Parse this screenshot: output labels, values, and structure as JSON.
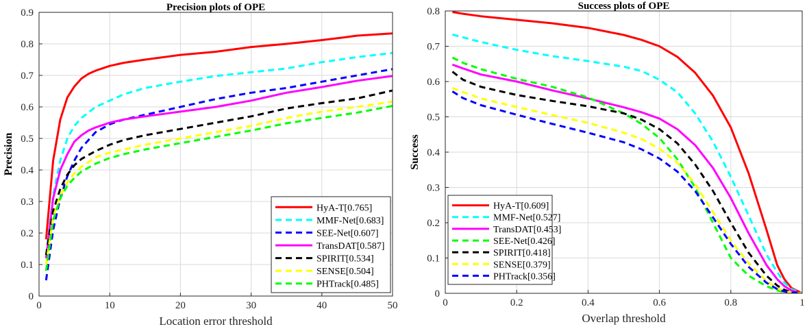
{
  "chart_data": [
    {
      "type": "line",
      "title": "Precision plots of OPE",
      "xlabel": "Location error threshold",
      "ylabel": "Precision",
      "xlim": [
        0,
        50
      ],
      "ylim": [
        0,
        0.9
      ],
      "xticks": [
        "0",
        "10",
        "20",
        "30",
        "40",
        "50"
      ],
      "yticks": [
        "0",
        "0.1",
        "0.2",
        "0.3",
        "0.4",
        "0.5",
        "0.6",
        "0.7",
        "0.8",
        "0.9"
      ],
      "grid": true,
      "legend_position": "bottom-right",
      "series": [
        {
          "name": "HyA-T[0.765]",
          "color": "#ff0000",
          "dash": "solid",
          "x": [
            1,
            2,
            3,
            4,
            5,
            6,
            7,
            8,
            10,
            12,
            15,
            20,
            25,
            30,
            35,
            40,
            43,
            45,
            50
          ],
          "y": [
            0.18,
            0.43,
            0.56,
            0.63,
            0.665,
            0.69,
            0.705,
            0.715,
            0.73,
            0.74,
            0.75,
            0.765,
            0.775,
            0.79,
            0.8,
            0.812,
            0.82,
            0.826,
            0.833
          ]
        },
        {
          "name": "MMF-Net[0.683]",
          "color": "#00ffff",
          "dash": "dashed",
          "x": [
            1,
            2,
            3,
            4,
            5,
            6,
            8,
            10,
            12,
            15,
            20,
            25,
            30,
            35,
            40,
            45,
            50
          ],
          "y": [
            0.13,
            0.32,
            0.43,
            0.5,
            0.54,
            0.565,
            0.6,
            0.62,
            0.64,
            0.66,
            0.68,
            0.698,
            0.71,
            0.722,
            0.742,
            0.758,
            0.771
          ]
        },
        {
          "name": "SEE-Net[0.607]",
          "color": "#0000ff",
          "dash": "dashed",
          "x": [
            1,
            2,
            3,
            4,
            5,
            6,
            8,
            10,
            12,
            15,
            20,
            25,
            30,
            35,
            40,
            45,
            50
          ],
          "y": [
            0.05,
            0.21,
            0.31,
            0.38,
            0.43,
            0.47,
            0.52,
            0.545,
            0.56,
            0.575,
            0.6,
            0.625,
            0.645,
            0.66,
            0.68,
            0.7,
            0.72
          ]
        },
        {
          "name": "TransDAT[0.587]",
          "color": "#ff00ff",
          "dash": "solid",
          "x": [
            1,
            2,
            3,
            4,
            5,
            6,
            7,
            8,
            10,
            12,
            15,
            20,
            25,
            30,
            35,
            40,
            45,
            50
          ],
          "y": [
            0.12,
            0.31,
            0.4,
            0.45,
            0.49,
            0.51,
            0.525,
            0.535,
            0.55,
            0.56,
            0.57,
            0.585,
            0.6,
            0.62,
            0.645,
            0.663,
            0.683,
            0.698
          ]
        },
        {
          "name": "SPIRIT[0.534]",
          "color": "#000000",
          "dash": "dashed",
          "x": [
            1,
            2,
            3,
            4,
            5,
            6,
            8,
            10,
            12,
            15,
            20,
            25,
            30,
            35,
            40,
            45,
            50
          ],
          "y": [
            0.13,
            0.27,
            0.34,
            0.385,
            0.415,
            0.435,
            0.46,
            0.48,
            0.495,
            0.51,
            0.53,
            0.55,
            0.57,
            0.595,
            0.612,
            0.627,
            0.652
          ]
        },
        {
          "name": "SENSE[0.504]",
          "color": "#ffff00",
          "dash": "dashed",
          "x": [
            1,
            2,
            3,
            4,
            5,
            6,
            8,
            10,
            12,
            15,
            20,
            25,
            30,
            35,
            40,
            45,
            50
          ],
          "y": [
            0.1,
            0.25,
            0.32,
            0.36,
            0.39,
            0.41,
            0.44,
            0.455,
            0.465,
            0.48,
            0.5,
            0.52,
            0.54,
            0.565,
            0.585,
            0.6,
            0.617
          ]
        },
        {
          "name": "PHTrack[0.485]",
          "color": "#00ff00",
          "dash": "dashed",
          "x": [
            1,
            2,
            3,
            4,
            5,
            6,
            8,
            10,
            12,
            15,
            20,
            25,
            30,
            35,
            40,
            45,
            50
          ],
          "y": [
            0.08,
            0.24,
            0.31,
            0.35,
            0.375,
            0.395,
            0.42,
            0.438,
            0.45,
            0.465,
            0.485,
            0.505,
            0.525,
            0.548,
            0.565,
            0.582,
            0.603
          ]
        }
      ]
    },
    {
      "type": "line",
      "title": "Success plots of OPE",
      "xlabel": "Overlap threshold",
      "ylabel": "Success",
      "xlim": [
        0,
        1
      ],
      "ylim": [
        0,
        0.8
      ],
      "xticks": [
        "0",
        "0.2",
        "0.4",
        "0.6",
        "0.8",
        "1"
      ],
      "yticks": [
        "0",
        "0.1",
        "0.2",
        "0.3",
        "0.4",
        "0.5",
        "0.6",
        "0.7",
        "0.8"
      ],
      "grid": true,
      "legend_position": "bottom-left",
      "series": [
        {
          "name": "HyA-T[0.609]",
          "color": "#ff0000",
          "dash": "solid",
          "x": [
            0.02,
            0.05,
            0.1,
            0.2,
            0.3,
            0.4,
            0.5,
            0.55,
            0.6,
            0.65,
            0.7,
            0.75,
            0.8,
            0.85,
            0.9,
            0.93,
            0.95,
            0.97,
            0.99,
            1.0
          ],
          "y": [
            0.797,
            0.792,
            0.785,
            0.775,
            0.765,
            0.752,
            0.732,
            0.718,
            0.7,
            0.67,
            0.625,
            0.56,
            0.47,
            0.34,
            0.18,
            0.08,
            0.04,
            0.015,
            0.005,
            0.0
          ]
        },
        {
          "name": "MMF-Net[0.527]",
          "color": "#00ffff",
          "dash": "dashed",
          "x": [
            0.02,
            0.05,
            0.1,
            0.2,
            0.3,
            0.4,
            0.5,
            0.55,
            0.6,
            0.65,
            0.7,
            0.75,
            0.8,
            0.85,
            0.9,
            0.93,
            0.95,
            0.97,
            0.99,
            1.0
          ],
          "y": [
            0.733,
            0.725,
            0.712,
            0.69,
            0.672,
            0.658,
            0.642,
            0.63,
            0.605,
            0.57,
            0.51,
            0.43,
            0.33,
            0.22,
            0.11,
            0.06,
            0.03,
            0.012,
            0.004,
            0.0
          ]
        },
        {
          "name": "TransDAT[0.453]",
          "color": "#ff00ff",
          "dash": "solid",
          "x": [
            0.02,
            0.05,
            0.1,
            0.2,
            0.3,
            0.4,
            0.5,
            0.55,
            0.6,
            0.65,
            0.7,
            0.75,
            0.8,
            0.85,
            0.9,
            0.93,
            0.95,
            0.97,
            0.99,
            1.0
          ],
          "y": [
            0.648,
            0.637,
            0.62,
            0.6,
            0.575,
            0.552,
            0.527,
            0.513,
            0.495,
            0.465,
            0.42,
            0.355,
            0.27,
            0.17,
            0.08,
            0.04,
            0.02,
            0.008,
            0.002,
            0.0
          ]
        },
        {
          "name": "SEE-Net[0.426]",
          "color": "#00ff00",
          "dash": "dashed",
          "x": [
            0.02,
            0.05,
            0.1,
            0.2,
            0.3,
            0.4,
            0.5,
            0.55,
            0.6,
            0.65,
            0.7,
            0.75,
            0.8,
            0.85,
            0.9,
            0.93,
            0.95,
            0.97,
            0.99,
            1.0
          ],
          "y": [
            0.668,
            0.653,
            0.635,
            0.608,
            0.585,
            0.555,
            0.51,
            0.48,
            0.44,
            0.38,
            0.3,
            0.2,
            0.1,
            0.05,
            0.02,
            0.008,
            0.004,
            0.001,
            0.0,
            0.0
          ]
        },
        {
          "name": "SPIRIT[0.418]",
          "color": "#000000",
          "dash": "dashed",
          "x": [
            0.02,
            0.05,
            0.1,
            0.2,
            0.3,
            0.4,
            0.5,
            0.55,
            0.6,
            0.65,
            0.7,
            0.75,
            0.8,
            0.85,
            0.9,
            0.93,
            0.95,
            0.97,
            0.99,
            1.0
          ],
          "y": [
            0.628,
            0.605,
            0.585,
            0.562,
            0.545,
            0.53,
            0.51,
            0.492,
            0.465,
            0.425,
            0.365,
            0.29,
            0.2,
            0.115,
            0.05,
            0.022,
            0.01,
            0.003,
            0.001,
            0.0
          ]
        },
        {
          "name": "SENSE[0.379]",
          "color": "#ffff00",
          "dash": "dashed",
          "x": [
            0.02,
            0.05,
            0.1,
            0.2,
            0.3,
            0.4,
            0.5,
            0.55,
            0.6,
            0.65,
            0.7,
            0.75,
            0.8,
            0.85,
            0.9,
            0.93,
            0.95,
            0.97,
            0.99,
            1.0
          ],
          "y": [
            0.582,
            0.57,
            0.552,
            0.528,
            0.505,
            0.483,
            0.455,
            0.437,
            0.41,
            0.37,
            0.31,
            0.23,
            0.15,
            0.085,
            0.035,
            0.014,
            0.006,
            0.002,
            0.0,
            0.0
          ]
        },
        {
          "name": "PHTrack[0.356]",
          "color": "#0000ff",
          "dash": "dashed",
          "x": [
            0.02,
            0.05,
            0.1,
            0.2,
            0.3,
            0.4,
            0.5,
            0.55,
            0.6,
            0.65,
            0.7,
            0.75,
            0.8,
            0.85,
            0.9,
            0.93,
            0.95,
            0.97,
            0.99,
            1.0
          ],
          "y": [
            0.572,
            0.553,
            0.533,
            0.506,
            0.48,
            0.455,
            0.428,
            0.408,
            0.382,
            0.345,
            0.29,
            0.215,
            0.14,
            0.075,
            0.03,
            0.012,
            0.005,
            0.002,
            0.0,
            0.0
          ]
        }
      ]
    }
  ]
}
